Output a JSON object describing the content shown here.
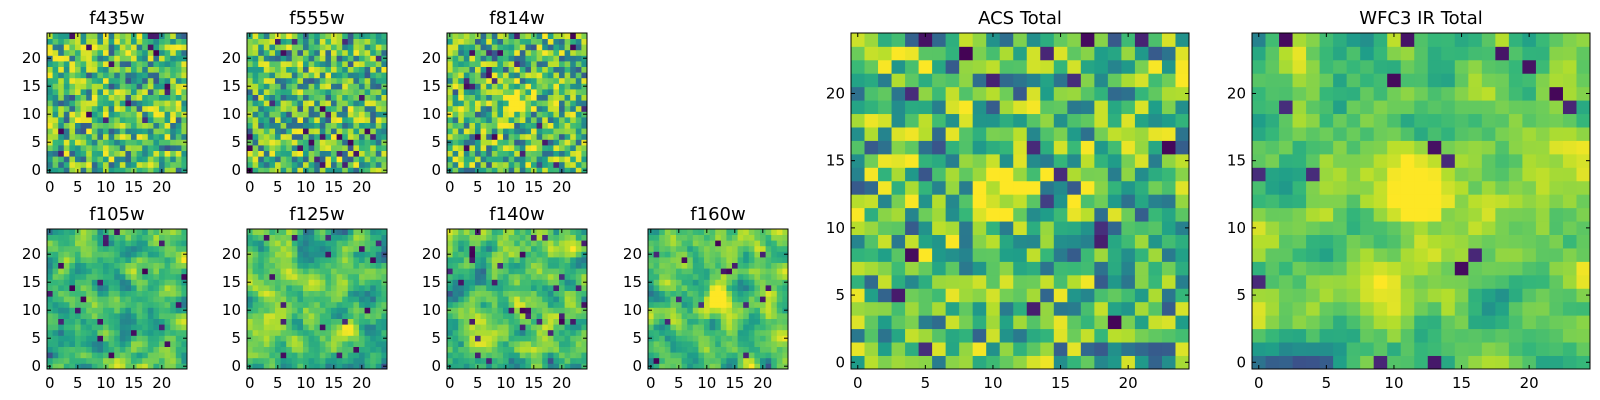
{
  "chart_data": [
    {
      "type": "heatmap",
      "title": "f435w",
      "grid_size": 25,
      "colormap": "viridis",
      "xticks": [
        "0",
        "5",
        "10",
        "15",
        "20"
      ],
      "yticks": [
        "0",
        "5",
        "10",
        "15",
        "20"
      ],
      "xlim": [
        0,
        24
      ],
      "ylim": [
        0,
        24
      ],
      "pattern": "uniform-noise",
      "seed": 11
    },
    {
      "type": "heatmap",
      "title": "f555w",
      "grid_size": 25,
      "colormap": "viridis",
      "xticks": [
        "0",
        "5",
        "10",
        "15",
        "20"
      ],
      "yticks": [
        "0",
        "5",
        "10",
        "15",
        "20"
      ],
      "xlim": [
        0,
        24
      ],
      "ylim": [
        0,
        24
      ],
      "pattern": "uniform-noise",
      "seed": 23
    },
    {
      "type": "heatmap",
      "title": "f814w",
      "grid_size": 25,
      "colormap": "viridis",
      "xticks": [
        "0",
        "5",
        "10",
        "15",
        "20"
      ],
      "yticks": [
        "0",
        "5",
        "10",
        "15",
        "20"
      ],
      "xlim": [
        0,
        24
      ],
      "ylim": [
        0,
        24
      ],
      "pattern": "noise-with-central-source",
      "source_center": [
        12,
        12
      ],
      "seed": 37
    },
    {
      "type": "heatmap",
      "title": "f105w",
      "grid_size": 25,
      "colormap": "viridis",
      "xticks": [
        "0",
        "5",
        "10",
        "15",
        "20"
      ],
      "yticks": [
        "0",
        "5",
        "10",
        "15",
        "20"
      ],
      "xlim": [
        0,
        24
      ],
      "ylim": [
        0,
        24
      ],
      "pattern": "smooth-noise",
      "seed": 41
    },
    {
      "type": "heatmap",
      "title": "f125w",
      "grid_size": 25,
      "colormap": "viridis",
      "xticks": [
        "0",
        "5",
        "10",
        "15",
        "20"
      ],
      "yticks": [
        "0",
        "5",
        "10",
        "15",
        "20"
      ],
      "xlim": [
        0,
        24
      ],
      "ylim": [
        0,
        24
      ],
      "pattern": "smooth-noise",
      "seed": 53
    },
    {
      "type": "heatmap",
      "title": "f140w",
      "grid_size": 25,
      "colormap": "viridis",
      "xticks": [
        "0",
        "5",
        "10",
        "15",
        "20"
      ],
      "yticks": [
        "0",
        "5",
        "10",
        "15",
        "20"
      ],
      "xlim": [
        0,
        24
      ],
      "ylim": [
        0,
        24
      ],
      "pattern": "smooth-noise",
      "seed": 67
    },
    {
      "type": "heatmap",
      "title": "f160w",
      "grid_size": 25,
      "colormap": "viridis",
      "xticks": [
        "0",
        "5",
        "10",
        "15",
        "20"
      ],
      "yticks": [
        "0",
        "5",
        "10",
        "15",
        "20"
      ],
      "xlim": [
        0,
        24
      ],
      "ylim": [
        0,
        24
      ],
      "pattern": "smooth-noise-with-central-source",
      "source_center": [
        12,
        12
      ],
      "seed": 79
    },
    {
      "type": "heatmap",
      "title": "ACS Total",
      "grid_size": 25,
      "colormap": "viridis",
      "xticks": [
        "0",
        "5",
        "10",
        "15",
        "20"
      ],
      "yticks": [
        "0",
        "5",
        "10",
        "15",
        "20"
      ],
      "xlim": [
        0,
        24
      ],
      "ylim": [
        0,
        24
      ],
      "pattern": "noise-with-central-source",
      "source_center": [
        11.5,
        12.5
      ],
      "seed": 83
    },
    {
      "type": "heatmap",
      "title": "WFC3 IR Total",
      "grid_size": 25,
      "colormap": "viridis",
      "xticks": [
        "0",
        "5",
        "10",
        "15",
        "20"
      ],
      "yticks": [
        "0",
        "5",
        "10",
        "15",
        "20"
      ],
      "xlim": [
        0,
        24
      ],
      "ylim": [
        0,
        24
      ],
      "pattern": "smooth-noise-with-central-source",
      "source_center": [
        12,
        12.5
      ],
      "seed": 97
    }
  ]
}
